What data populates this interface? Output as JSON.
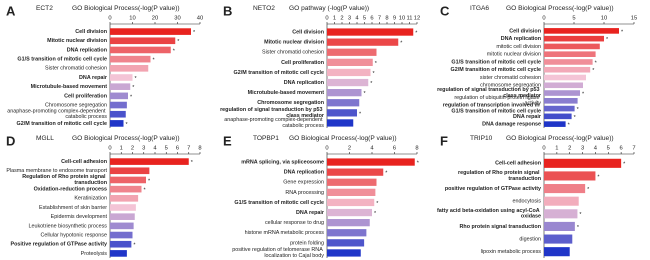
{
  "chart_data": [
    {
      "type": "hbar",
      "panel": "A",
      "gene": "ECT2",
      "title": "GO Biological Process(-log(P value))",
      "categories": [
        "Cell division",
        "Mitotic nuclear division",
        "DNA replication",
        "G1/S transition of mitotic cell cycle",
        "Sister chromatid cohesion",
        "DNA repair",
        "Microtubule-based movement",
        "Cell proliferation",
        "Chromosome segregation",
        "anaphase-promoting complex-dependent catabolic process",
        "G2/M transition of mitotic cell cycle"
      ],
      "values": [
        36,
        29,
        27,
        18,
        17,
        10,
        9,
        8,
        7.5,
        7,
        6
      ],
      "bold": [
        true,
        true,
        true,
        true,
        false,
        true,
        true,
        true,
        false,
        false,
        true
      ],
      "annotations": [
        "*",
        "*",
        "*",
        "*",
        null,
        "*",
        "*",
        "*",
        null,
        null,
        "*"
      ],
      "xlim": [
        0,
        40
      ],
      "xticks": [
        0,
        10,
        20,
        30,
        40
      ],
      "gradient": [
        "#e8231f",
        "#f4c4d6",
        "#1f35c8"
      ]
    },
    {
      "type": "hbar",
      "panel": "B",
      "gene": "NETO2",
      "title": "GO  pathway (-log(P value))",
      "categories": [
        "Cell division",
        "Mitotic nuclear division",
        "Sister chromatid cohesion",
        "Cell proliferation",
        "G2/M transition of mitotic cell cycle",
        "DNA replication",
        "Microtubule-based movement",
        "Chromosome segregation",
        "regulation of signal transduction by p53 class mediator",
        "anaphase-promoting complex-dependent catabolic process"
      ],
      "values": [
        11.5,
        9.5,
        6.6,
        6.1,
        5.8,
        5.5,
        4.6,
        4.3,
        4,
        3.5
      ],
      "bold": [
        true,
        true,
        false,
        true,
        true,
        true,
        true,
        true,
        true,
        false
      ],
      "annotations": [
        "*",
        "*",
        null,
        "*",
        "*",
        "*",
        "*",
        null,
        "*",
        null
      ],
      "xlim": [
        0,
        12
      ],
      "xticks": [
        0,
        1,
        2,
        3,
        4,
        5,
        6,
        7,
        8,
        9,
        10,
        11,
        12
      ],
      "gradient": [
        "#e8231f",
        "#f4c4d6",
        "#1f35c8"
      ]
    },
    {
      "type": "hbar",
      "panel": "C",
      "gene": "ITGA6",
      "title": "GO Biological Process(-log(P value))",
      "categories": [
        "Cell division",
        "DNA replication",
        "mitotic cell division",
        "mitotic nuclear division",
        "G1/S transition of mitotic cell cycle",
        "G2/M transition of mitotic cell cycle",
        "sister chromatid cohesion",
        "chromosome segregation",
        "regulation of signal transduction by p53 class mediator",
        "regulation of ubiquitin-protein ligase activity",
        "regulation of transcription involved in G1/S transition of mitotic cell cycle",
        "DNA repair",
        "DNA damage response"
      ],
      "values": [
        12.5,
        10,
        9.3,
        8.6,
        8.1,
        7.7,
        7,
        6.5,
        6,
        5.6,
        5.1,
        4.6,
        3.6
      ],
      "bold": [
        true,
        true,
        false,
        false,
        true,
        true,
        false,
        false,
        true,
        false,
        true,
        true,
        true
      ],
      "annotations": [
        "*",
        "*",
        null,
        null,
        "*",
        "*",
        null,
        null,
        "*",
        null,
        "*",
        "*",
        "*"
      ],
      "xlim": [
        0,
        15
      ],
      "xticks": [
        0,
        5,
        10,
        15
      ],
      "gradient": [
        "#e8231f",
        "#f4c4d6",
        "#1f35c8"
      ]
    },
    {
      "type": "hbar",
      "panel": "D",
      "gene": "MGLL",
      "title": "GO Biological Process(-log(P value))",
      "categories": [
        "Cell-cell adhesion",
        "Plasma membrane to endosome transport",
        "Regulation of Rho protein signal transduction",
        "Oxidation-reduction process",
        "Keratinization",
        "Establishment of skin barrier",
        "Epidermis development",
        "Leukotriene biosynthetic process",
        "Cellular hypotonic response",
        "Positive regulation of GTPase activity",
        "Proteolysis"
      ],
      "values": [
        7,
        3.5,
        3.2,
        2.8,
        2.5,
        2.3,
        2.2,
        2.1,
        2,
        1.9,
        1.5
      ],
      "bold": [
        true,
        false,
        true,
        true,
        false,
        false,
        false,
        false,
        false,
        true,
        false
      ],
      "annotations": [
        "*",
        null,
        "*",
        "*",
        null,
        null,
        null,
        null,
        null,
        "*",
        null
      ],
      "xlim": [
        0,
        8
      ],
      "xticks": [
        0,
        1,
        2,
        3,
        4,
        5,
        6,
        7,
        8
      ],
      "gradient": [
        "#e8231f",
        "#f4c4d6",
        "#1f35c8"
      ]
    },
    {
      "type": "hbar",
      "panel": "E",
      "gene": "TOPBP1",
      "title": "GO Biological Process(-log(P value))",
      "categories": [
        "mRNA splicing, via spliceosome",
        "DNA replication",
        "Gene expression",
        "RNA processing",
        "G1/S transition of mitotic cell cycle",
        "DNA repair",
        "cellular response to drug",
        "histone mRNA metabolic process",
        "protein folding",
        "positive regulation of telomerase RNA localization to Cajal body"
      ],
      "values": [
        7.8,
        5,
        4.4,
        4.3,
        4.2,
        4,
        3.8,
        3.5,
        3.3,
        3
      ],
      "bold": [
        true,
        true,
        false,
        false,
        true,
        true,
        false,
        false,
        false,
        false
      ],
      "annotations": [
        "*",
        "*",
        null,
        null,
        "*",
        "*",
        null,
        null,
        null,
        null
      ],
      "xlim": [
        0,
        8
      ],
      "xticks": [
        0,
        2,
        4,
        6,
        8
      ],
      "gradient": [
        "#e8231f",
        "#f4c4d6",
        "#1f35c8"
      ]
    },
    {
      "type": "hbar",
      "panel": "F",
      "gene": "TRIP10",
      "title": "GO Biological Process(-log(P value))",
      "categories": [
        "Cell-cell adhesion",
        "regulation of Rho protein signal transduction",
        "positive regulation of GTPase activity",
        "endocytosis",
        "fatty acid beta-oxidation using acyl-CoA oxidase",
        "Rho protein signal transduction",
        "digestion",
        "lipoxin metabolic process"
      ],
      "values": [
        6,
        4,
        3.2,
        2.7,
        2.6,
        2.4,
        2.2,
        2
      ],
      "bold": [
        true,
        true,
        true,
        false,
        true,
        true,
        false,
        false
      ],
      "annotations": [
        "*",
        "*",
        "*",
        null,
        "*",
        "*",
        null,
        null
      ],
      "xlim": [
        0,
        7
      ],
      "xticks": [
        0,
        1,
        2,
        3,
        4,
        5,
        6,
        7
      ],
      "gradient": [
        "#e8231f",
        "#f4c4d6",
        "#1f35c8"
      ]
    }
  ]
}
